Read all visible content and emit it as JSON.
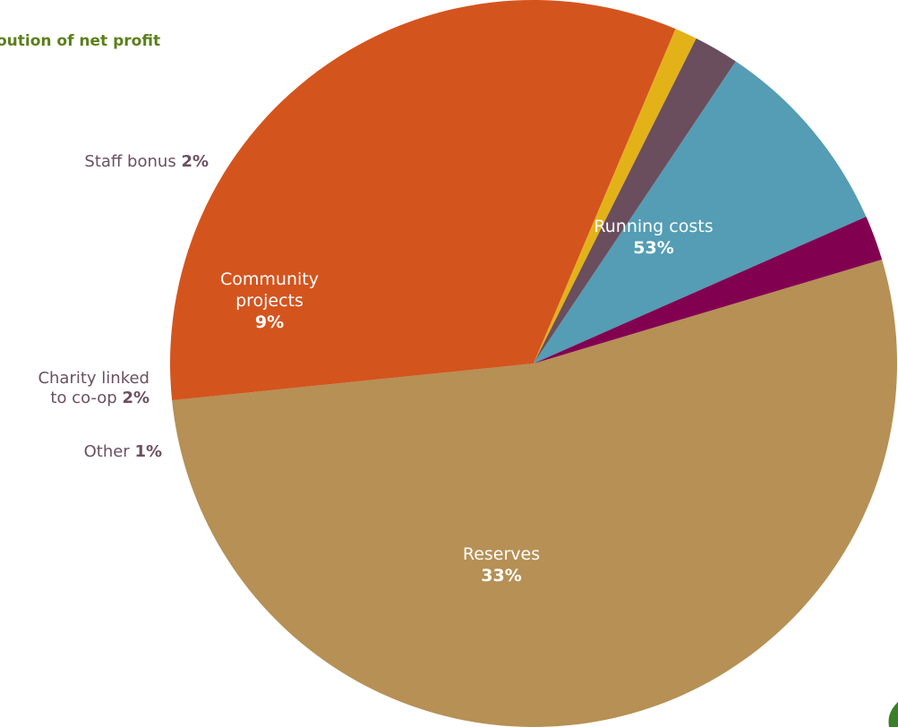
{
  "title": "oution of net profit",
  "chart_data": {
    "type": "pie",
    "title": "oution of net profit",
    "slices": [
      {
        "name": "Running costs",
        "value": 53,
        "label": "53%",
        "color": "#b69055"
      },
      {
        "name": "Reserves",
        "value": 33,
        "label": "33%",
        "color": "#d4541e"
      },
      {
        "name": "Other",
        "value": 1,
        "label": "1%",
        "color": "#e3b219"
      },
      {
        "name": "Charity linked to co-op",
        "name_line1": "Charity linked",
        "name_line2": "to co-op",
        "value": 2,
        "label": "2%",
        "color": "#6a4e5e"
      },
      {
        "name": "Community projects",
        "name_line1": "Community",
        "name_line2": "projects",
        "value": 9,
        "label": "9%",
        "color": "#549db4"
      },
      {
        "name": "Staff bonus",
        "value": 2,
        "label": "2%",
        "color": "#820050"
      }
    ]
  },
  "colors": {
    "title": "#5c7f1c",
    "side_label": "#6b5060",
    "leaf": "#3a7f2a"
  },
  "icons": {
    "corner": "leaf-icon"
  }
}
